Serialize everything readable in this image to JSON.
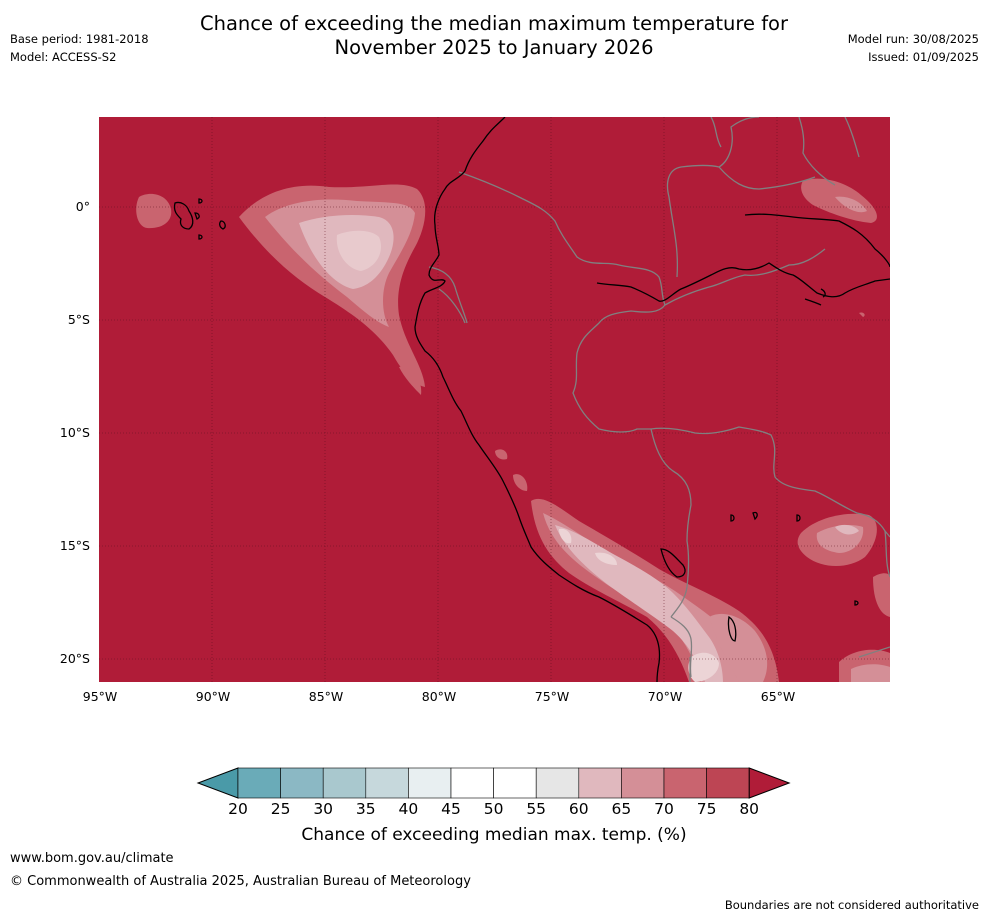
{
  "title": {
    "line1": "Chance of exceeding the median maximum temperature for",
    "line2": "November 2025 to January 2026"
  },
  "meta": {
    "base_period": "Base period: 1981-2018",
    "model": "Model: ACCESS-S2",
    "model_run": "Model run: 30/08/2025",
    "issued": "Issued: 01/09/2025"
  },
  "map": {
    "lat_labels": [
      "0°",
      "5°S",
      "10°S",
      "15°S",
      "20°S"
    ],
    "lon_labels": [
      "95°W",
      "90°W",
      "85°W",
      "80°W",
      "75°W",
      "70°W",
      "65°W"
    ],
    "base_color": "#b01c38",
    "coastline_color": "#000000",
    "border_color": "#808080",
    "grid": true
  },
  "colorbar": {
    "ticks": [
      "20",
      "25",
      "30",
      "35",
      "40",
      "45",
      "50",
      "55",
      "60",
      "65",
      "70",
      "75",
      "80"
    ],
    "colors": [
      "#6aabb8",
      "#8bb8c4",
      "#a9c8ce",
      "#c6d8dc",
      "#e8eff1",
      "#ffffff",
      "#ffffff",
      "#e6e6e6",
      "#e0b8be",
      "#d48f97",
      "#c9646f",
      "#bd4554"
    ],
    "under_color": "#4a9aa8",
    "over_color": "#b01c38",
    "title": "Chance of exceeding median max. temp. (%)"
  },
  "footer": {
    "url": "www.bom.gov.au/climate",
    "copyright": "© Commonwealth of Australia 2025, Australian Bureau of Meteorology",
    "note": "Boundaries are not considered authoritative"
  }
}
